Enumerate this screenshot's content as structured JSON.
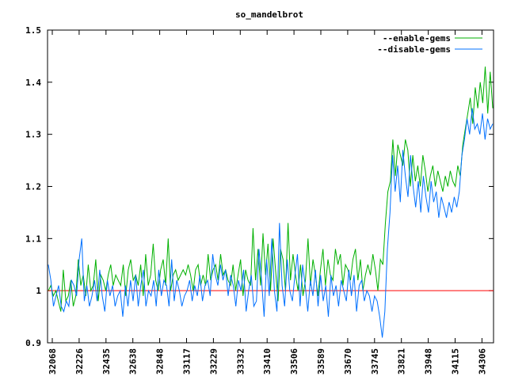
{
  "chart_data": {
    "type": "line",
    "title": "so_mandelbrot",
    "xlabel": "",
    "ylabel": "",
    "ylim": [
      0.9,
      1.5
    ],
    "y_ticks": [
      "0.9",
      "1",
      "1.1",
      "1.2",
      "1.3",
      "1.4",
      "1.5"
    ],
    "x_ticks": [
      "32068",
      "32226",
      "32435",
      "32638",
      "32848",
      "33117",
      "33229",
      "33332",
      "33410",
      "33506",
      "33589",
      "33670",
      "33745",
      "33821",
      "33948",
      "34115",
      "34306"
    ],
    "legend_position": "top-right",
    "grid": false,
    "reference_line": {
      "y": 1.0,
      "color": "#ff0000"
    },
    "series": [
      {
        "name": "--enable-gems",
        "color": "#00b000",
        "values": [
          1.0,
          1.01,
          0.99,
          1.0,
          0.98,
          0.96,
          1.04,
          0.98,
          0.99,
          1.02,
          0.97,
          0.99,
          1.06,
          1.01,
          1.03,
          0.99,
          1.05,
          1.0,
          1.01,
          1.06,
          0.98,
          1.03,
          1.02,
          1.0,
          1.03,
          1.05,
          1.01,
          1.03,
          1.02,
          1.01,
          1.05,
          0.99,
          1.04,
          1.06,
          1.02,
          1.03,
          1.01,
          1.05,
          0.99,
          1.07,
          1.01,
          1.03,
          1.09,
          1.02,
          1.0,
          1.04,
          1.06,
          1.01,
          1.1,
          1.0,
          1.03,
          1.04,
          1.02,
          1.03,
          1.04,
          1.03,
          1.05,
          1.03,
          1.0,
          1.04,
          1.05,
          1.01,
          1.03,
          1.01,
          1.07,
          1.02,
          1.04,
          1.05,
          1.02,
          1.07,
          1.03,
          1.04,
          1.02,
          1.01,
          1.05,
          1.0,
          1.03,
          1.06,
          0.99,
          1.04,
          1.02,
          1.01,
          1.12,
          1.02,
          1.08,
          1.01,
          1.11,
          1.03,
          1.09,
          1.0,
          1.1,
          1.04,
          0.98,
          1.08,
          1.06,
          1.0,
          1.13,
          1.02,
          1.07,
          1.03,
          1.0,
          1.05,
          0.99,
          1.02,
          1.1,
          1.01,
          1.06,
          1.03,
          0.99,
          1.04,
          1.08,
          1.01,
          1.06,
          1.03,
          1.02,
          1.08,
          1.05,
          1.07,
          1.01,
          1.05,
          1.04,
          1.02,
          1.06,
          1.08,
          1.02,
          1.06,
          1.0,
          1.03,
          1.05,
          1.03,
          1.07,
          1.04,
          1.0,
          1.06,
          1.05,
          1.13,
          1.19,
          1.21,
          1.29,
          1.22,
          1.28,
          1.26,
          1.24,
          1.29,
          1.27,
          1.2,
          1.26,
          1.21,
          1.24,
          1.2,
          1.26,
          1.23,
          1.19,
          1.22,
          1.24,
          1.2,
          1.23,
          1.21,
          1.19,
          1.22,
          1.2,
          1.23,
          1.21,
          1.2,
          1.24,
          1.22,
          1.28,
          1.31,
          1.34,
          1.37,
          1.32,
          1.39,
          1.35,
          1.4,
          1.36,
          1.43,
          1.34,
          1.42,
          1.35
        ]
      },
      {
        "name": "--disable-gems",
        "color": "#0070ff",
        "values": [
          1.05,
          1.02,
          0.97,
          0.99,
          1.01,
          0.97,
          0.96,
          0.98,
          0.97,
          1.02,
          1.01,
          0.99,
          1.06,
          1.1,
          0.98,
          1.01,
          0.97,
          0.99,
          1.02,
          0.98,
          1.04,
          0.99,
          0.96,
          1.02,
          0.99,
          1.01,
          0.97,
          0.99,
          1.0,
          0.95,
          1.01,
          0.97,
          1.02,
          0.98,
          1.03,
          0.97,
          1.01,
          1.04,
          0.97,
          1.0,
          0.99,
          1.02,
          0.97,
          1.04,
          0.99,
          1.02,
          1.01,
          0.97,
          1.06,
          0.98,
          1.02,
          1.0,
          0.97,
          0.99,
          1.0,
          1.02,
          0.98,
          1.01,
          0.99,
          1.03,
          0.98,
          1.01,
          1.02,
          0.99,
          1.07,
          1.03,
          1.01,
          1.05,
          1.02,
          1.04,
          0.99,
          1.03,
          1.01,
          0.97,
          1.02,
          1.0,
          1.04,
          0.96,
          1.0,
          1.03,
          0.97,
          0.98,
          1.08,
          1.02,
          0.95,
          1.06,
          0.99,
          1.1,
          1.0,
          0.96,
          1.13,
          1.01,
          0.97,
          1.06,
          1.0,
          0.98,
          1.03,
          1.07,
          0.97,
          1.05,
          1.01,
          0.96,
          1.02,
          0.99,
          1.04,
          0.97,
          1.03,
          0.98,
          1.01,
          0.95,
          1.03,
          0.99,
          1.01,
          0.97,
          1.02,
          1.0,
          0.98,
          1.04,
          0.99,
          1.03,
          0.96,
          1.01,
          1.02,
          0.98,
          1.0,
          0.99,
          0.96,
          0.99,
          0.98,
          0.95,
          0.91,
          0.96,
          1.08,
          1.15,
          1.26,
          1.19,
          1.24,
          1.17,
          1.27,
          1.22,
          1.18,
          1.26,
          1.2,
          1.16,
          1.21,
          1.15,
          1.22,
          1.18,
          1.15,
          1.21,
          1.17,
          1.19,
          1.14,
          1.18,
          1.16,
          1.14,
          1.17,
          1.15,
          1.18,
          1.16,
          1.19,
          1.26,
          1.29,
          1.33,
          1.3,
          1.35,
          1.31,
          1.32,
          1.3,
          1.34,
          1.29,
          1.33,
          1.31,
          1.32
        ]
      }
    ]
  }
}
